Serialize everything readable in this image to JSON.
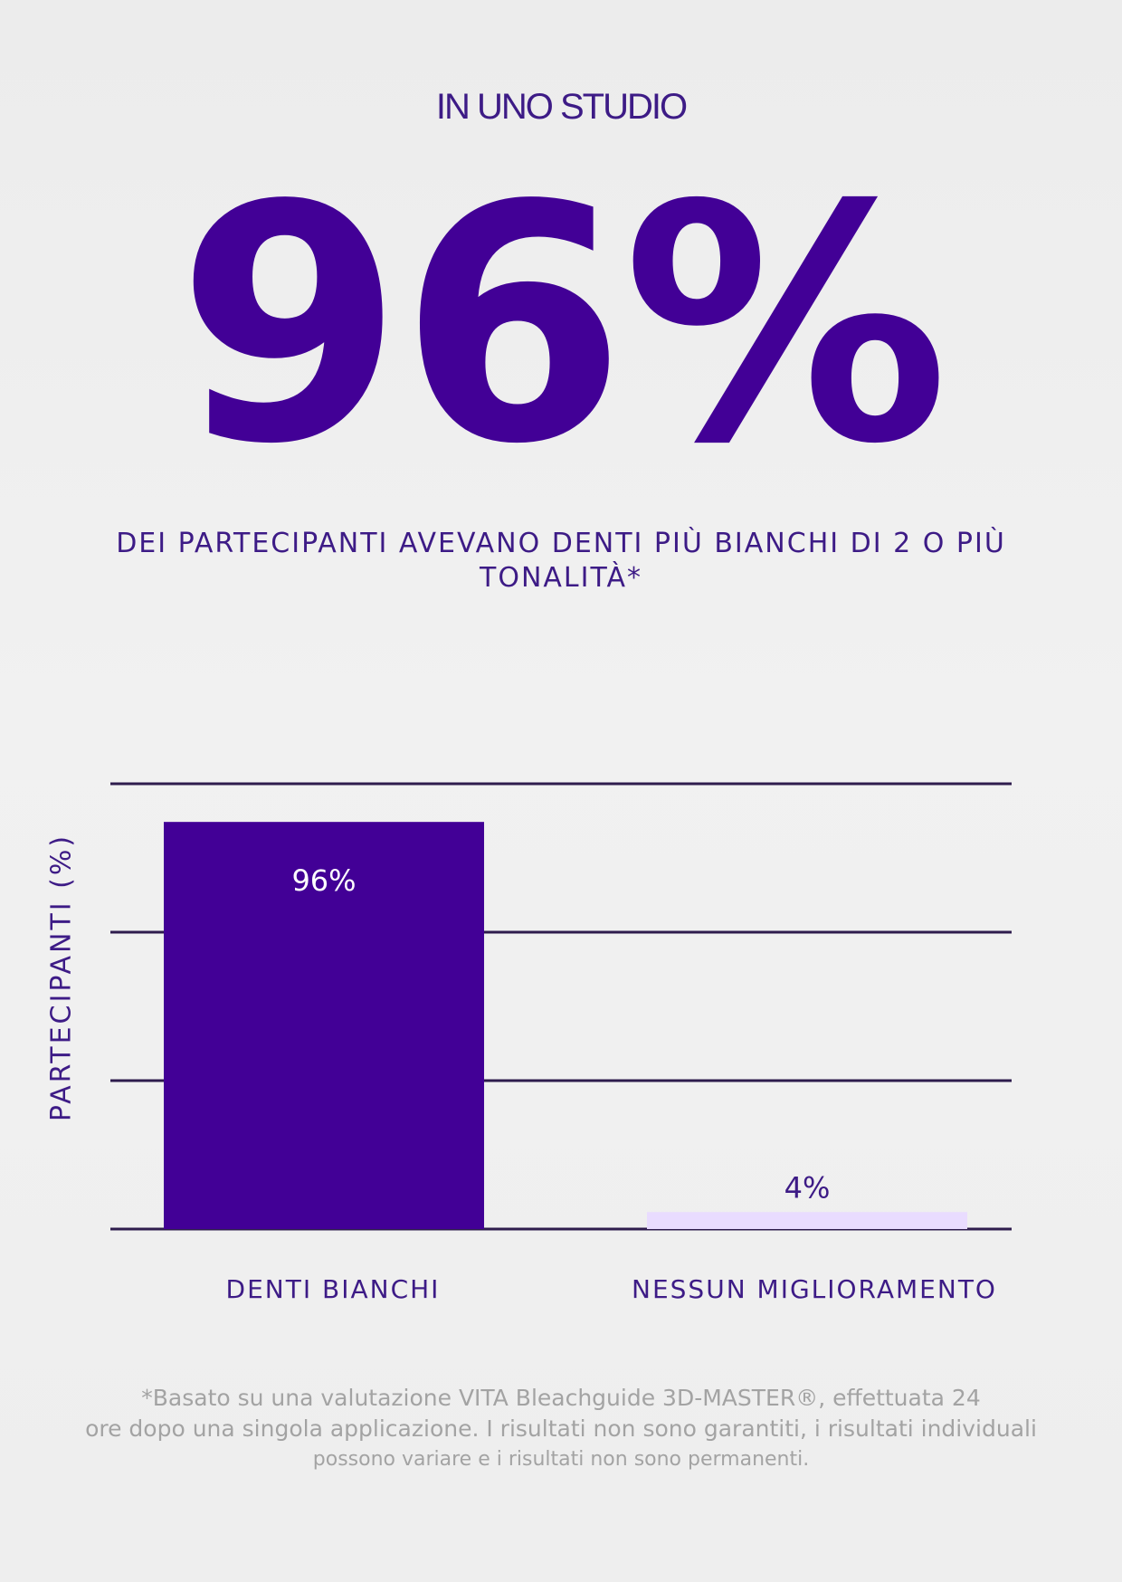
{
  "header": {
    "eyebrow": "IN UNO STUDIO",
    "hero": "96%",
    "subtitle": "DEI PARTECIPANTI AVEVANO DENTI PIÙ BIANCHI DI 2 O PIÙ TONALITÀ*"
  },
  "chart_data": {
    "type": "bar",
    "categories": [
      "DENTI BIANCHI",
      "NESSUN MIGLIORAMENTO"
    ],
    "values": [
      96,
      4
    ],
    "value_labels": [
      "96%",
      "4%"
    ],
    "ylabel": "PARTECIPANTI (%)",
    "ylim": [
      0,
      105
    ],
    "grid": true,
    "colors": {
      "bar_primary": "#420096",
      "bar_secondary": "#e9dcff",
      "grid": "#2e1c4d",
      "label_on_dark": "#ffffff",
      "label_on_light": "#3d1b86",
      "text": "#3d1b86"
    }
  },
  "footnote": {
    "line1": "*Basato su una valutazione VITA Bleachguide 3D-MASTER®, effettuata 24",
    "line2": "ore dopo una singola applicazione. I risultati non sono garantiti, i risultati individuali",
    "line3": "possono variare e i risultati non sono permanenti."
  }
}
